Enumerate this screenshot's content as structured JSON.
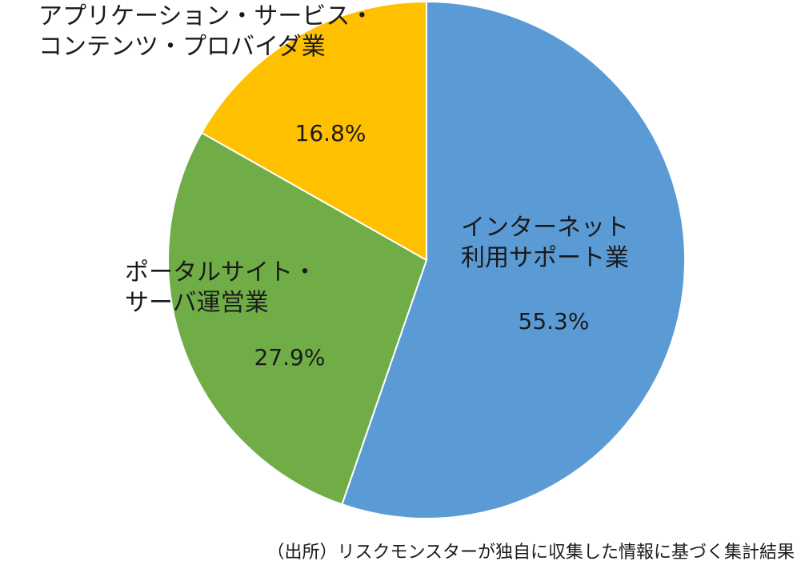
{
  "chart_data": {
    "type": "pie",
    "slices": [
      {
        "label_lines": [
          "インターネット",
          "利用サポート業"
        ],
        "value": 55.3,
        "value_label": "55.3%",
        "color": "#5B9BD5"
      },
      {
        "label_lines": [
          "ポータルサイト・",
          "サーバ運営業"
        ],
        "value": 27.9,
        "value_label": "27.9%",
        "color": "#70AD47"
      },
      {
        "label_lines": [
          "アプリケーション・サービス・",
          "コンテンツ・プロバイダ業"
        ],
        "value": 16.8,
        "value_label": "16.8%",
        "color": "#FFC000"
      }
    ],
    "start": "12 o'clock",
    "direction": "clockwise",
    "edge_color": "#ffffff"
  },
  "note": "（出所）リスクモンスターが独自に収集した情報に基づく集計結果"
}
